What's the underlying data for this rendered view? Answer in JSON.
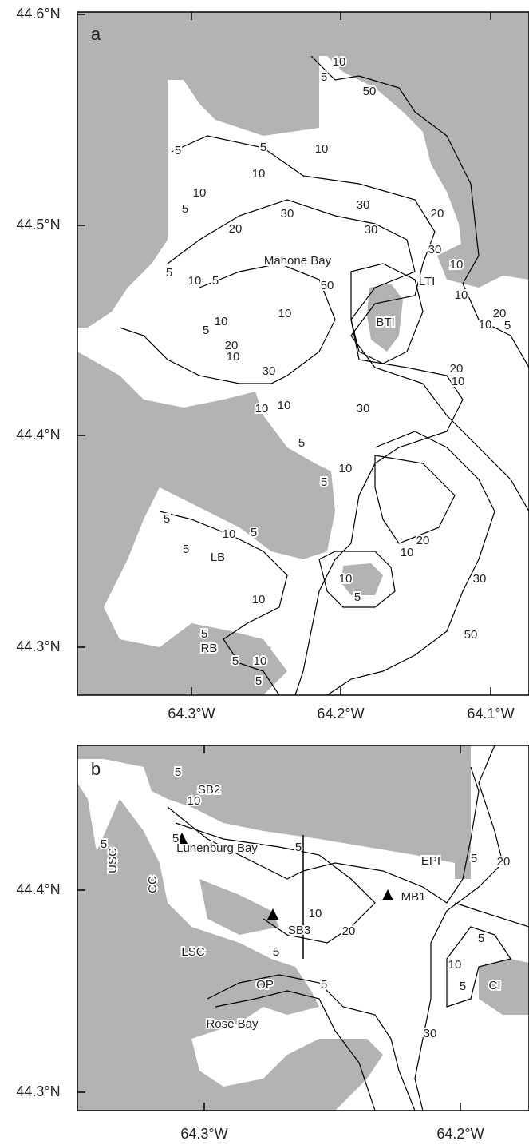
{
  "panels": [
    {
      "label": "a",
      "yticks": [
        "44.6°N",
        "44.5°N",
        "44.4°N",
        "44.3°N"
      ],
      "xticks": [
        "64.3°W",
        "64.2°W",
        "64.1°W"
      ],
      "places": [
        "Mahone Bay",
        "LTI",
        "BTI",
        "LB",
        "RB"
      ],
      "contour_labels": [
        "10",
        "5",
        "50",
        "5",
        "10",
        "5",
        "10",
        "10",
        "5",
        "30",
        "30",
        "20",
        "20",
        "30",
        "30",
        "10",
        "5",
        "10",
        "5",
        "10",
        "50",
        "20",
        "10",
        "10",
        "5",
        "20",
        "10",
        "10",
        "5",
        "30",
        "20",
        "10",
        "10",
        "10",
        "30",
        "5",
        "10",
        "5",
        "5",
        "10",
        "5",
        "5",
        "20",
        "10",
        "10",
        "5",
        "30",
        "10",
        "5",
        "50",
        "5",
        "10",
        "5"
      ]
    },
    {
      "label": "b",
      "yticks": [
        "44.4°N",
        "44.3°N"
      ],
      "xticks": [
        "64.3°W",
        "64.2°W"
      ],
      "places": [
        "SB2",
        "USC",
        "Lunenburg Bay",
        "EPI",
        "MB1",
        "CC",
        "SB3",
        "LSC",
        "OP",
        "CI",
        "Rose Bay"
      ],
      "contour_labels": [
        "5",
        "10",
        "5",
        "5",
        "5",
        "5",
        "20",
        "10",
        "20",
        "5",
        "5",
        "10",
        "5",
        "5",
        "30"
      ]
    }
  ]
}
